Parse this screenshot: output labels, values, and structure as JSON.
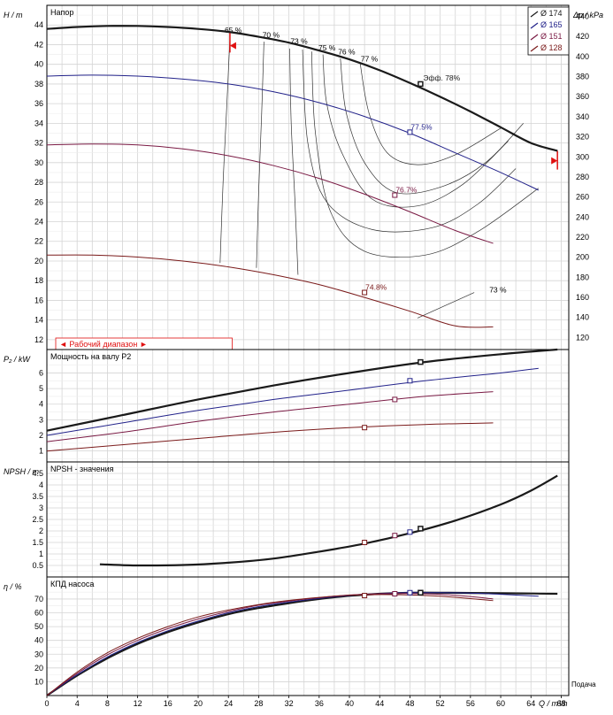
{
  "chart_data": [
    {
      "type": "line",
      "panel": "head",
      "title": "Напор",
      "ylabel": "H / m",
      "ylabel_right": "Δp / kPa",
      "ylim": [
        11,
        46
      ],
      "ylim_right": [
        108,
        451
      ],
      "y_ticks": [
        12,
        14,
        16,
        18,
        20,
        22,
        24,
        26,
        28,
        30,
        32,
        34,
        36,
        38,
        40,
        42,
        44
      ],
      "y_ticks_right": [
        120,
        140,
        160,
        180,
        200,
        220,
        240,
        260,
        280,
        300,
        320,
        340,
        360,
        380,
        400,
        420,
        440
      ],
      "legend": [
        "Ø 174",
        "Ø 165",
        "Ø 151",
        "Ø 128"
      ],
      "range_label": "◄ Рабочий диапазон ►",
      "series": [
        {
          "name": "Ø 174",
          "color": "#1a1a1a",
          "width": 2.2,
          "x": [
            0,
            4,
            8,
            12,
            16,
            20,
            24,
            28,
            32,
            36,
            40,
            44,
            48,
            52,
            56,
            60,
            64,
            67.5
          ],
          "y": [
            43.6,
            43.8,
            43.9,
            43.9,
            43.8,
            43.6,
            43.3,
            42.8,
            42.2,
            41.4,
            40.5,
            39.4,
            38.1,
            36.7,
            35.2,
            33.6,
            32.0,
            31.2
          ]
        },
        {
          "name": "Ø 165",
          "color": "#22228a",
          "width": 1,
          "x": [
            0,
            6,
            12,
            18,
            24,
            30,
            36,
            42,
            48,
            54,
            60,
            65
          ],
          "y": [
            38.8,
            38.9,
            38.8,
            38.5,
            38.0,
            37.2,
            36.1,
            34.7,
            33.0,
            31.0,
            29.0,
            27.2
          ]
        },
        {
          "name": "Ø 151",
          "color": "#7a1a44",
          "width": 1,
          "x": [
            0,
            6,
            12,
            18,
            24,
            30,
            36,
            42,
            48,
            54,
            59
          ],
          "y": [
            31.8,
            31.9,
            31.8,
            31.4,
            30.7,
            29.7,
            28.4,
            26.8,
            25.0,
            23.1,
            21.8
          ]
        },
        {
          "name": "Ø 128",
          "color": "#7a1a1a",
          "width": 1,
          "x": [
            0,
            6,
            12,
            18,
            24,
            30,
            36,
            42,
            48,
            54,
            59
          ],
          "y": [
            20.6,
            20.6,
            20.4,
            20.0,
            19.4,
            18.6,
            17.6,
            16.3,
            14.9,
            13.4,
            13.3
          ]
        }
      ],
      "markers": [
        {
          "x": 49.4,
          "y": 38.0,
          "label": "Эфф.  78%"
        },
        {
          "x": 48.0,
          "y": 33.1,
          "label": "77.5%"
        },
        {
          "x": 46.0,
          "y": 26.7,
          "label": "76.7%"
        },
        {
          "x": 42.0,
          "y": 16.8,
          "label": "74.8%"
        }
      ],
      "efficiency_labels": [
        "65 %",
        "70 %",
        "73 %",
        "75 %",
        "76 %",
        "77 %",
        "73 %"
      ]
    },
    {
      "type": "line",
      "panel": "power",
      "title": "Мощность на валу P2",
      "ylabel": "P₂ / kW",
      "ylim": [
        0.3,
        7.5
      ],
      "y_ticks": [
        1,
        2,
        3,
        4,
        5,
        6
      ],
      "series": [
        {
          "name": "Ø 174",
          "color": "#1a1a1a",
          "width": 2.2,
          "x": [
            0,
            10,
            20,
            30,
            40,
            50,
            60,
            67.5
          ],
          "y": [
            2.3,
            3.3,
            4.3,
            5.2,
            6.0,
            6.7,
            7.2,
            7.5
          ]
        },
        {
          "name": "Ø 165",
          "color": "#22228a",
          "width": 1,
          "x": [
            0,
            10,
            20,
            30,
            40,
            50,
            60,
            65
          ],
          "y": [
            2.0,
            2.8,
            3.6,
            4.3,
            4.9,
            5.5,
            6.0,
            6.3
          ]
        },
        {
          "name": "Ø 151",
          "color": "#7a1a44",
          "width": 1,
          "x": [
            0,
            10,
            20,
            30,
            40,
            50,
            59
          ],
          "y": [
            1.6,
            2.2,
            2.9,
            3.5,
            4.0,
            4.5,
            4.8
          ]
        },
        {
          "name": "Ø 128",
          "color": "#7a1a1a",
          "width": 1,
          "x": [
            0,
            10,
            20,
            30,
            40,
            50,
            59
          ],
          "y": [
            1.0,
            1.4,
            1.8,
            2.2,
            2.5,
            2.7,
            2.8
          ]
        }
      ],
      "markers": [
        {
          "x": 49.4,
          "y": 6.7
        },
        {
          "x": 48.0,
          "y": 5.5
        },
        {
          "x": 46.0,
          "y": 4.3
        },
        {
          "x": 42.0,
          "y": 2.5
        }
      ]
    },
    {
      "type": "line",
      "panel": "npsh",
      "title": "NPSH - значения",
      "ylabel": "NPSH / m",
      "ylim": [
        0,
        5
      ],
      "y_ticks": [
        0.5,
        1,
        1.5,
        2,
        2.5,
        3,
        3.5,
        4,
        4.5
      ],
      "series": [
        {
          "name": "Ø 174",
          "color": "#1a1a1a",
          "width": 2.2,
          "x": [
            7,
            12,
            18,
            24,
            30,
            36,
            42,
            48,
            54,
            60,
            64,
            67.5
          ],
          "y": [
            0.55,
            0.5,
            0.52,
            0.62,
            0.8,
            1.1,
            1.45,
            1.9,
            2.45,
            3.15,
            3.75,
            4.4
          ]
        }
      ],
      "markers": [
        {
          "x": 49.4,
          "y": 2.1
        },
        {
          "x": 48.0,
          "y": 1.95
        },
        {
          "x": 46.0,
          "y": 1.8
        },
        {
          "x": 42.0,
          "y": 1.5
        }
      ]
    },
    {
      "type": "line",
      "panel": "efficiency",
      "title": "КПД насоса",
      "ylabel": "η / %",
      "ylim": [
        0,
        86
      ],
      "y_ticks": [
        10,
        20,
        30,
        40,
        50,
        60,
        70
      ],
      "xlabel": "Q / m³/h",
      "xlabel_right": "Подача",
      "x_ticks": [
        0,
        4,
        8,
        12,
        16,
        20,
        24,
        28,
        32,
        36,
        40,
        44,
        48,
        52,
        56,
        60,
        64,
        68
      ],
      "series": [
        {
          "name": "Ø 174",
          "color": "#1a1a1a",
          "width": 2.2,
          "x": [
            0,
            4,
            8,
            12,
            16,
            20,
            24,
            28,
            32,
            36,
            40,
            44,
            48,
            52,
            56,
            60,
            64,
            67.5
          ],
          "y": [
            0,
            14.5,
            27,
            37.5,
            46,
            53,
            59,
            63.5,
            67,
            70,
            72.3,
            73.8,
            74.6,
            74.6,
            74.4,
            74.2,
            74.0,
            73.8
          ]
        },
        {
          "name": "Ø 165",
          "color": "#22228a",
          "width": 1,
          "x": [
            0,
            4,
            8,
            12,
            16,
            20,
            24,
            28,
            32,
            36,
            40,
            44,
            48,
            52,
            56,
            60,
            65
          ],
          "y": [
            0,
            15,
            28,
            38.5,
            47,
            54,
            60,
            64.5,
            67.8,
            70.5,
            72.5,
            73.9,
            74.6,
            74.6,
            74.3,
            73.4,
            72
          ]
        },
        {
          "name": "Ø 151",
          "color": "#7a1a44",
          "width": 1,
          "x": [
            0,
            4,
            8,
            12,
            16,
            20,
            24,
            28,
            32,
            36,
            40,
            44,
            48,
            52,
            56,
            59
          ],
          "y": [
            0,
            16,
            29.5,
            40,
            48.5,
            55.5,
            61,
            65.5,
            68.5,
            71,
            72.9,
            73.8,
            74,
            73.4,
            71.8,
            70
          ]
        },
        {
          "name": "Ø 128",
          "color": "#7a1a1a",
          "width": 1,
          "x": [
            0,
            4,
            8,
            12,
            16,
            20,
            24,
            28,
            32,
            36,
            40,
            44,
            48,
            52,
            56,
            59
          ],
          "y": [
            0,
            17,
            31,
            41.5,
            50,
            57,
            62,
            66,
            69,
            71.2,
            72.8,
            73.2,
            72.9,
            72,
            70.3,
            68.8
          ]
        }
      ],
      "markers": [
        {
          "x": 49.4,
          "y": 74.6
        },
        {
          "x": 48.0,
          "y": 74.6
        },
        {
          "x": 46.0,
          "y": 73.8
        },
        {
          "x": 42.0,
          "y": 72.5
        }
      ]
    }
  ]
}
